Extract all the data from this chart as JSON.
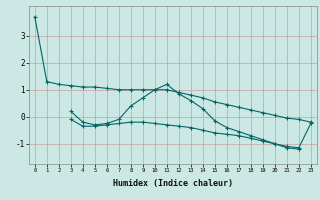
{
  "xlabel": "Humidex (Indice chaleur)",
  "background_color": "#cce8e4",
  "grid_color": "#c8a0a0",
  "line_color": "#006666",
  "x_values": [
    0,
    1,
    2,
    3,
    4,
    5,
    6,
    7,
    8,
    9,
    10,
    11,
    12,
    13,
    14,
    15,
    16,
    17,
    18,
    19,
    20,
    21,
    22,
    23
  ],
  "series1": [
    3.7,
    1.3,
    1.2,
    1.15,
    1.1,
    1.1,
    1.05,
    1.0,
    1.0,
    1.0,
    1.0,
    1.0,
    0.9,
    0.8,
    0.7,
    0.55,
    0.45,
    0.35,
    0.25,
    0.15,
    0.05,
    -0.05,
    -0.1,
    -0.2
  ],
  "series2": [
    null,
    null,
    null,
    0.2,
    -0.2,
    -0.3,
    -0.25,
    -0.1,
    0.4,
    0.7,
    1.0,
    1.2,
    0.85,
    0.6,
    0.3,
    -0.15,
    -0.4,
    -0.55,
    -0.7,
    -0.85,
    -1.0,
    -1.15,
    -1.2,
    null
  ],
  "series3": [
    null,
    null,
    null,
    -0.1,
    -0.35,
    -0.35,
    -0.3,
    -0.25,
    -0.2,
    -0.2,
    -0.25,
    -0.3,
    -0.35,
    -0.4,
    -0.5,
    -0.6,
    -0.65,
    -0.7,
    -0.8,
    -0.9,
    -1.0,
    -1.1,
    -1.15,
    -0.25
  ],
  "ylim": [
    -1.75,
    4.1
  ],
  "yticks": [
    -1,
    0,
    1,
    2,
    3
  ],
  "xlim": [
    -0.5,
    23.5
  ]
}
